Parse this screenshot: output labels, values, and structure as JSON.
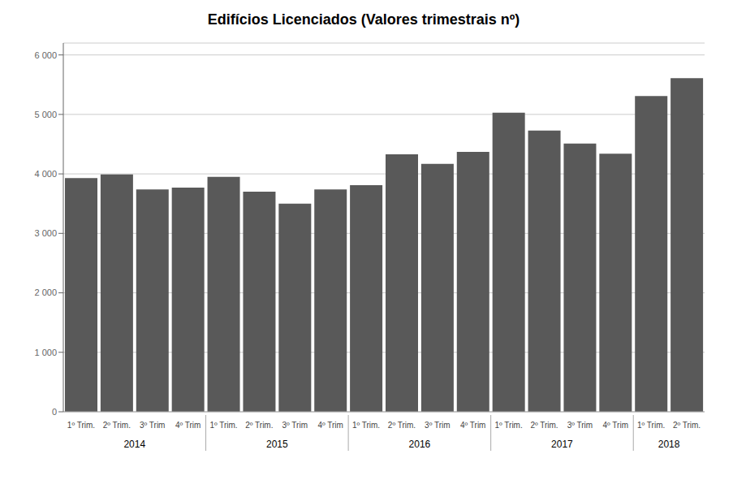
{
  "chart_data": {
    "type": "bar",
    "title": "Edifícios Licenciados (Valores trimestrais nº)",
    "categories": [
      "1º Trim.",
      "2º Trim.",
      "3º Trim",
      "4º Trim",
      "1º Trim.",
      "2º Trim.",
      "3º Trim",
      "4º Trim",
      "1º Trim.",
      "2º Trim.",
      "3º Trim",
      "4º Trim",
      "1º Trim.",
      "2º Trim.",
      "3º Trim",
      "4º Trim",
      "1º Trim.",
      "2º Trim."
    ],
    "values": [
      3930,
      3990,
      3740,
      3770,
      3950,
      3700,
      3500,
      3740,
      3810,
      4330,
      4170,
      4370,
      5030,
      4730,
      4510,
      4340,
      5310,
      5610
    ],
    "color": "#595959",
    "ylim": [
      0,
      6200
    ],
    "yticks": [
      0,
      {
        "value": 1000,
        "label": "1 000"
      },
      {
        "value": 2000,
        "label": "2 000"
      },
      {
        "value": 3000,
        "label": "3 000"
      },
      {
        "value": 4000,
        "label": "4 000"
      },
      {
        "value": 5000,
        "label": "5 000"
      },
      {
        "value": 6000,
        "label": "6 000"
      }
    ],
    "grid": true,
    "groups": [
      {
        "label": "2014",
        "size": 4
      },
      {
        "label": "2015",
        "size": 4
      },
      {
        "label": "2016",
        "size": 4
      },
      {
        "label": "2017",
        "size": 4
      },
      {
        "label": "2018",
        "size": 2
      }
    ]
  }
}
